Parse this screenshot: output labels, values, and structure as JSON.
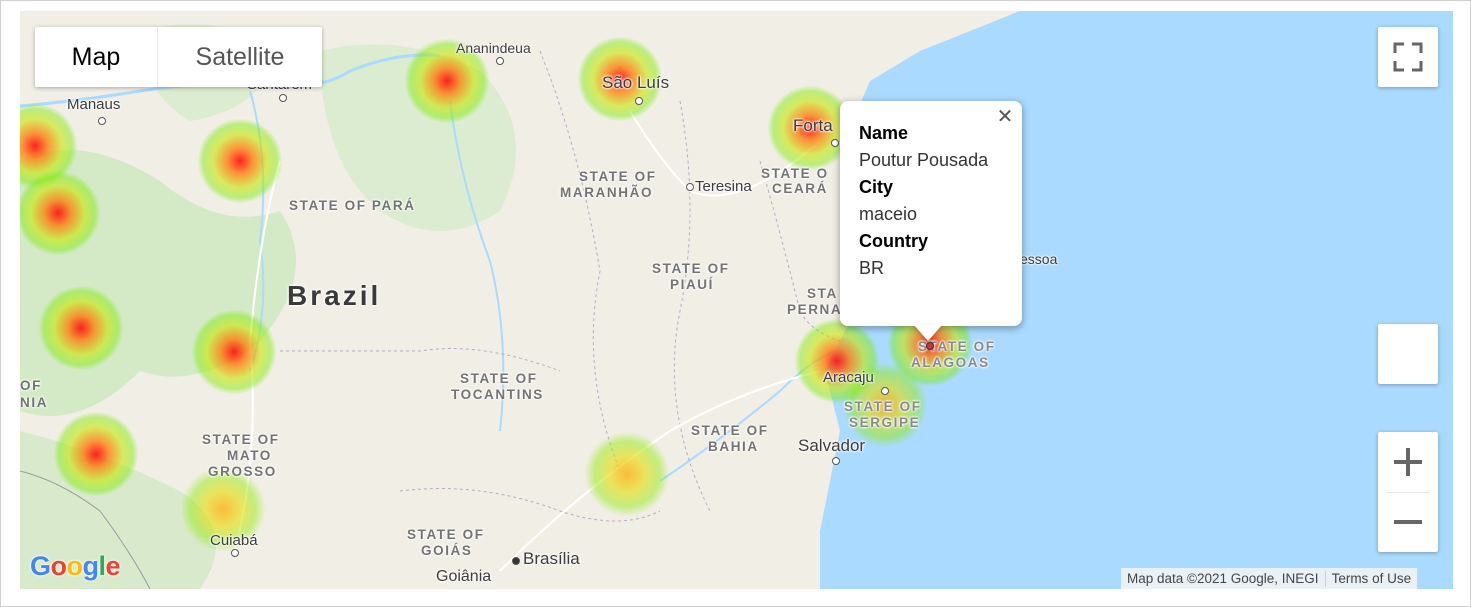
{
  "map_type": {
    "map_label": "Map",
    "satellite_label": "Satellite",
    "selected": "Map"
  },
  "controls": {
    "fullscreen_icon": "fullscreen-icon",
    "pegman_icon": "pegman-icon",
    "zoom_in_icon": "plus-icon",
    "zoom_out_icon": "minus-icon"
  },
  "labels": {
    "manaus": "Manaus",
    "santarem": "Santarém",
    "ananindeua": "Ananindeua",
    "sao_luis": "São Luís",
    "fortaleza": "Forta",
    "teresina": "Teresina",
    "state_para": "STATE OF PARÁ",
    "state_maranhao_1": "STATE OF",
    "state_maranhao_2": "MARANHÃO",
    "state_ceara_1": "STATE O",
    "state_ceara_2": "CEARÁ",
    "state_piaui_1": "STATE OF",
    "state_piaui_2": "PIAUÍ",
    "state_pernambuco_1": "STA",
    "state_pernambuco_2": "PERNA",
    "pessoa": "essoa",
    "brazil": "Brazil",
    "state_alagoas_1": "STATE OF",
    "state_alagoas_2": "ALAGOAS",
    "aracaju": "Aracaju",
    "state_sergipe_1": "STATE OF",
    "state_sergipe_2": "SERGIPE",
    "state_tocantins_1": "STATE OF",
    "state_tocantins_2": "TOCANTINS",
    "state_bahia_1": "STATE OF",
    "state_bahia_2": "BAHIA",
    "salvador": "Salvador",
    "state_mato_grosso_1": "STATE OF",
    "state_mato_grosso_2": "MATO",
    "state_mato_grosso_3": "GROSSO",
    "cuiaba": "Cuiabá",
    "state_goias_1": "STATE OF",
    "state_goias_2": "GOIÁS",
    "brasilia": "Brasília",
    "goiania": "Goiânia",
    "of_left": "OF",
    "nia_left": "NIA"
  },
  "info_window": {
    "name_label": "Name",
    "name_value": "Poutur Pousada",
    "city_label": "City",
    "city_value": "maceio",
    "country_label": "Country",
    "country_value": "BR",
    "close_icon": "close-icon"
  },
  "attribution": {
    "map_data": "Map data ©2021 Google, INEGI",
    "terms": "Terms of Use",
    "logo": "Google"
  },
  "colors": {
    "water": "#aadaff",
    "land": "#f0ede5",
    "forest": "#c4e6b8",
    "heat_core": "#ff0000",
    "heat_edge": "#7fe600"
  }
}
